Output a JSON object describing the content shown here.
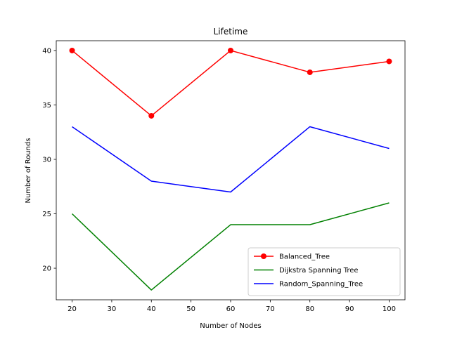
{
  "chart_data": {
    "type": "line",
    "title": "Lifetime",
    "xlabel": "Number of Nodes",
    "ylabel": "Number of Rounds",
    "x": [
      20,
      40,
      60,
      80,
      100
    ],
    "xlim": [
      16,
      104
    ],
    "ylim": [
      17.1,
      40.9
    ],
    "xticks": [
      20,
      30,
      40,
      50,
      60,
      70,
      80,
      90,
      100
    ],
    "yticks": [
      20,
      25,
      30,
      35,
      40
    ],
    "grid": false,
    "legend_position": "lower-right",
    "series": [
      {
        "name": "Balanced_Tree",
        "values": [
          40,
          34,
          40,
          38,
          39
        ],
        "color": "#ff0000",
        "marker": "circle"
      },
      {
        "name": "Dijkstra Spanning Tree",
        "values": [
          25,
          18,
          24,
          24,
          26
        ],
        "color": "#008000",
        "marker": "none"
      },
      {
        "name": "Random_Spanning_Tree",
        "values": [
          33,
          28,
          27,
          33,
          31
        ],
        "color": "#0000ff",
        "marker": "none"
      }
    ]
  }
}
